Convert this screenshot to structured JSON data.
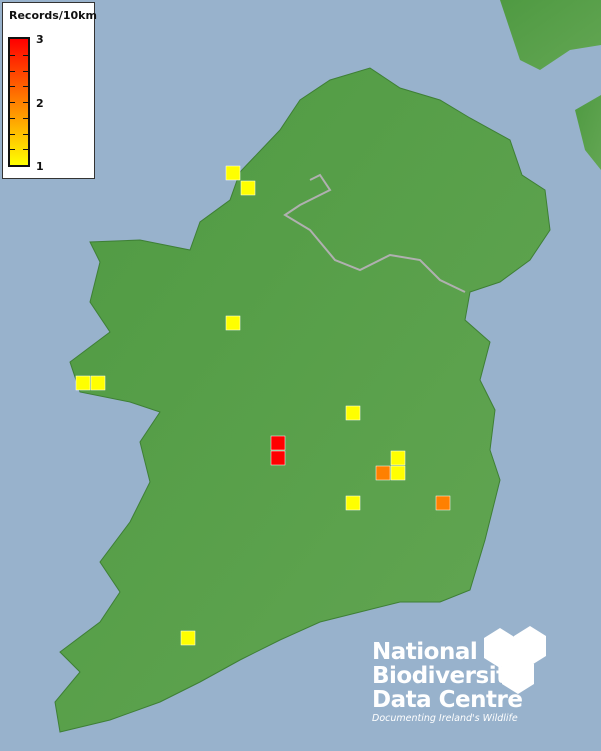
{
  "legend": {
    "title": "Records/10km",
    "max_label": "3",
    "mid_label": "2",
    "min_label": "1",
    "color_min": "#ffff00",
    "color_mid": "#ff8000",
    "color_max": "#ff0000"
  },
  "records": [
    1,
    1,
    1,
    1,
    1,
    1,
    3,
    3,
    1,
    2,
    1,
    1,
    2,
    1
  ],
  "logo": {
    "line1": "National",
    "line2": "Biodiversity",
    "line3": "Data Centre",
    "tagline": "Documenting Ireland's Wildlife"
  },
  "colors": {
    "sea": "#98b2cc",
    "land": "#5a9e4a"
  }
}
